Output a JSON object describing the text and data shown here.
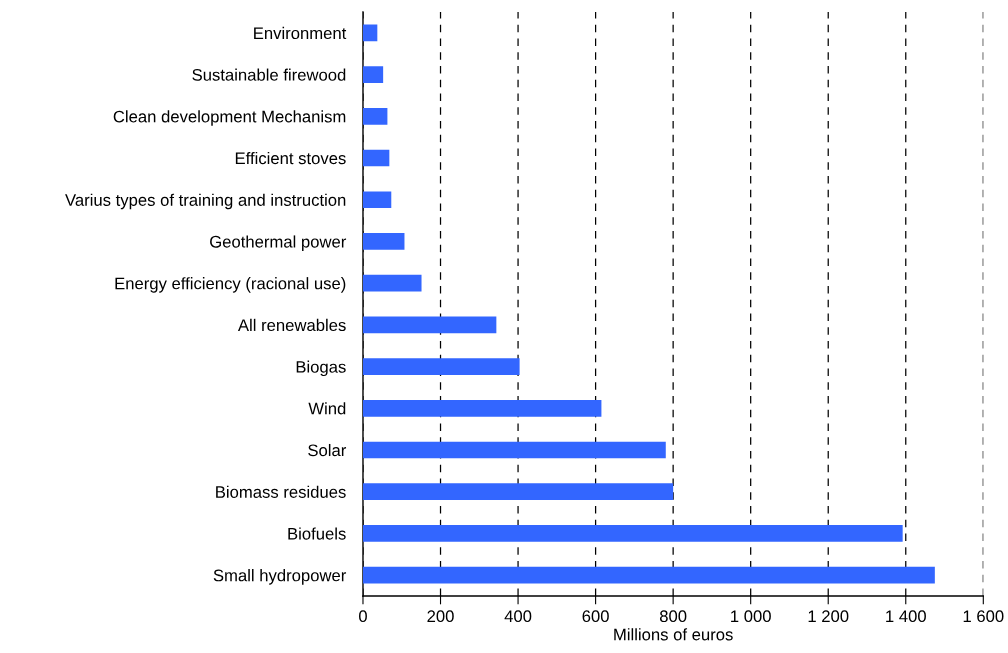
{
  "chart_data": {
    "type": "bar",
    "orientation": "horizontal",
    "xlabel": "Millions of euros",
    "categories": [
      "Environment",
      "Sustainable firewood",
      "Clean development Mechanism",
      "Efficient stoves",
      "Varius types of training and instruction",
      "Geothermal power",
      "Energy efficiency (racional use)",
      "All renewables",
      "Biogas",
      "Wind",
      "Solar",
      "Biomass residues",
      "Biofuels",
      "Small hydropower"
    ],
    "values": [
      37,
      52,
      63,
      68,
      73,
      107,
      151,
      344,
      404,
      615,
      781,
      800,
      1392,
      1475
    ],
    "color": "#3366ff",
    "xlim": [
      0,
      1600
    ],
    "xticks": [
      0,
      200,
      400,
      600,
      800,
      {
        "value": 1000,
        "label": "1 000"
      },
      {
        "value": 1200,
        "label": "1 200"
      },
      {
        "value": 1400,
        "label": "1 400"
      },
      {
        "value": 1600,
        "label": "1 600"
      }
    ],
    "grid": "x",
    "legend": false
  }
}
